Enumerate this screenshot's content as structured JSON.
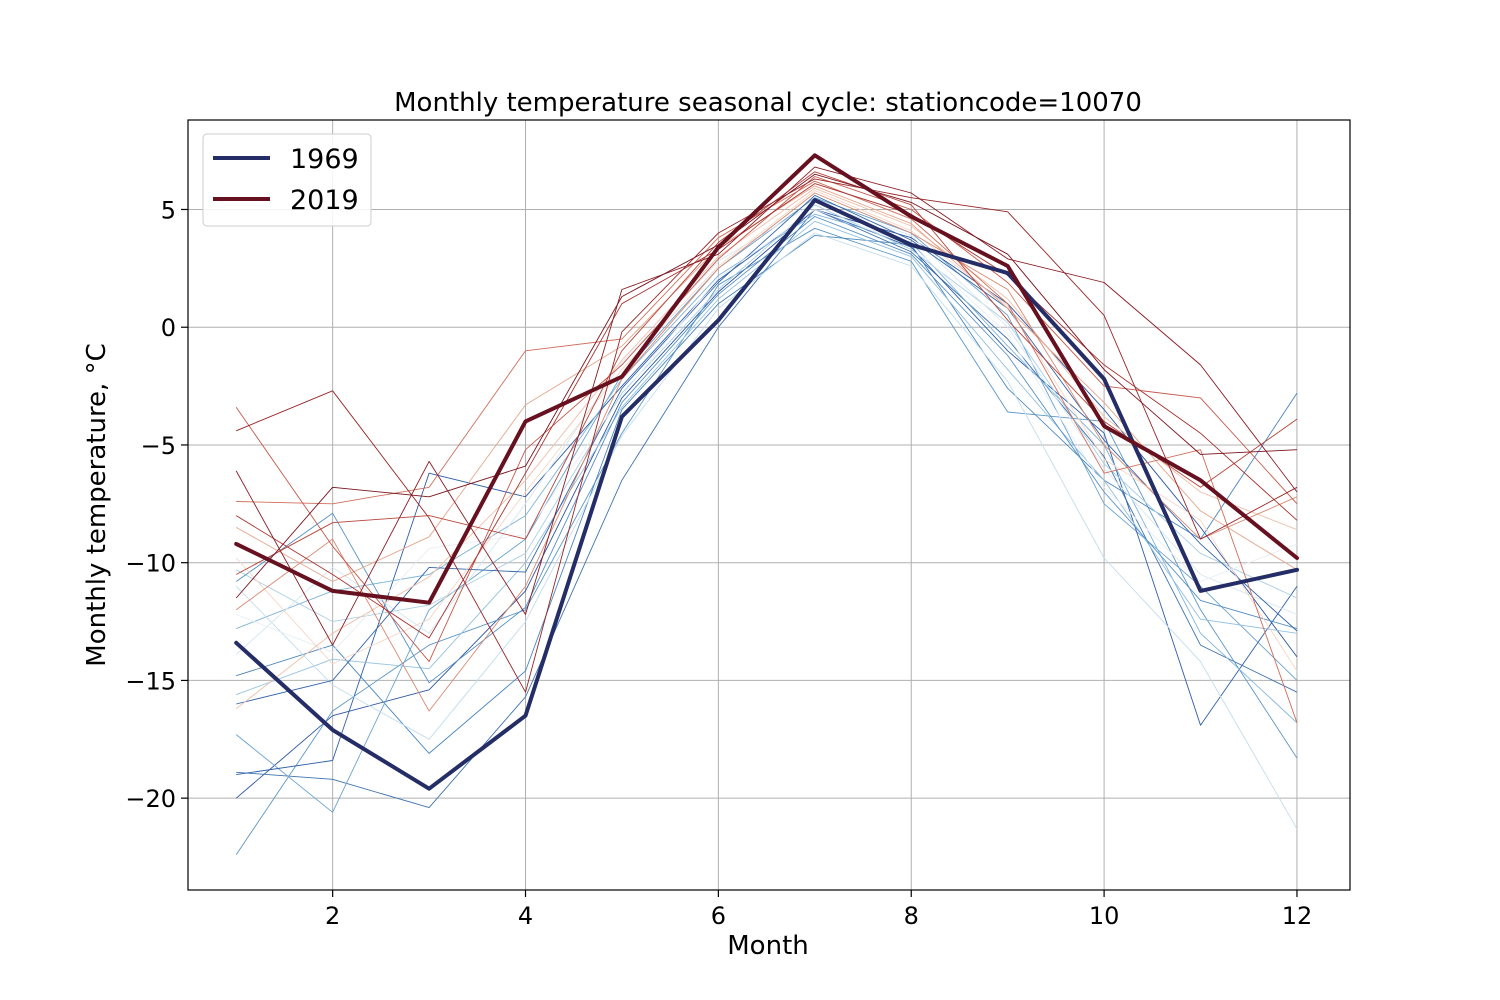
{
  "chart_data": {
    "type": "line",
    "title": "Monthly temperature seasonal cycle: stationcode=10070",
    "xlabel": "Month",
    "ylabel": "Monthly temperature, °C",
    "x": [
      1,
      2,
      3,
      4,
      5,
      6,
      7,
      8,
      9,
      10,
      11,
      12
    ],
    "xlim": [
      0.5,
      12.55
    ],
    "ylim": [
      -23.9,
      8.8
    ],
    "xticks": [
      2,
      4,
      6,
      8,
      10,
      12
    ],
    "yticks": [
      5,
      0,
      -5,
      -10,
      -15,
      -20
    ],
    "xtick_labels": [
      "2",
      "4",
      "6",
      "8",
      "10",
      "12"
    ],
    "ytick_labels": [
      "5",
      "0",
      "−5",
      "−10",
      "−15",
      "−20"
    ],
    "grid": true,
    "legend_position": "upper-left",
    "series": [
      {
        "name": "1969",
        "color": "#252d66",
        "values": [
          -13.4,
          -17.1,
          -19.6,
          -16.5,
          -3.8,
          0.3,
          5.4,
          3.5,
          2.3,
          -2.2,
          -11.2,
          -10.3
        ]
      },
      {
        "name": "2019",
        "color": "#67101f",
        "values": [
          -9.2,
          -11.2,
          -11.7,
          -4.0,
          -2.1,
          3.4,
          7.3,
          4.7,
          2.6,
          -4.2,
          -6.5,
          -9.8
        ]
      }
    ],
    "background_series": [
      {
        "color": "#2b55a0",
        "values": [
          -20.0,
          -16.5,
          -15.4,
          -11.2,
          -3.0,
          1.5,
          5.0,
          3.8,
          1.0,
          -3.5,
          -8.5,
          -14.0
        ]
      },
      {
        "color": "#3f74b0",
        "values": [
          -18.9,
          -19.2,
          -20.4,
          -15.7,
          -6.5,
          0.0,
          5.0,
          3.2,
          -0.5,
          -5.5,
          -13.5,
          -15.5
        ]
      },
      {
        "color": "#5b97c6",
        "values": [
          -22.4,
          -16.3,
          -13.5,
          -12.0,
          -4.5,
          1.8,
          4.2,
          2.8,
          -3.6,
          -4.0,
          -12.0,
          -18.3
        ]
      },
      {
        "color": "#4a86bd",
        "values": [
          -14.8,
          -13.5,
          -18.1,
          -14.6,
          -3.5,
          1.0,
          3.9,
          3.5,
          -2.6,
          -6.5,
          -9.0,
          -2.8
        ]
      },
      {
        "color": "#6aa3ce",
        "values": [
          -17.3,
          -20.6,
          -12.0,
          -9.0,
          -2.0,
          2.5,
          5.5,
          4.0,
          0.5,
          -7.5,
          -11.0,
          -15.0
        ]
      },
      {
        "color": "#2f5fa8",
        "values": [
          -19.0,
          -18.4,
          -6.2,
          -7.2,
          -2.5,
          2.0,
          5.0,
          3.4,
          -1.0,
          -4.5,
          -16.9,
          -11.0
        ]
      },
      {
        "color": "#80b4d8",
        "values": [
          -12.8,
          -11.2,
          -10.5,
          -8.0,
          -2.2,
          2.2,
          4.8,
          3.6,
          -0.8,
          -5.0,
          -13.0,
          -16.8
        ]
      },
      {
        "color": "#94c1df",
        "values": [
          -15.6,
          -14.1,
          -14.5,
          -10.0,
          -3.4,
          1.2,
          4.5,
          3.0,
          -1.8,
          -6.5,
          -12.4,
          -13.0
        ]
      },
      {
        "color": "#a9cfe5",
        "values": [
          -10.3,
          -12.5,
          -11.8,
          -9.6,
          -2.8,
          1.6,
          5.2,
          3.3,
          0.2,
          -5.8,
          -9.6,
          -11.5
        ]
      },
      {
        "color": "#c2dded",
        "values": [
          -11.0,
          -15.2,
          -17.5,
          -12.5,
          -4.6,
          0.8,
          4.0,
          2.6,
          -2.3,
          -9.8,
          -14.2,
          -21.3
        ]
      },
      {
        "color": "#d6e6f0",
        "values": [
          -13.9,
          -10.2,
          -13.0,
          -7.5,
          -1.5,
          2.8,
          5.3,
          3.9,
          0.0,
          -6.0,
          -10.5,
          -12.2
        ]
      },
      {
        "color": "#5590c4",
        "values": [
          -10.8,
          -7.9,
          -15.1,
          -11.9,
          -3.2,
          1.4,
          4.7,
          3.1,
          -1.2,
          -7.0,
          -11.6,
          -12.8
        ]
      },
      {
        "color": "#3566a9",
        "values": [
          -16.0,
          -15.0,
          -10.2,
          -10.4,
          -2.6,
          1.9,
          5.6,
          3.7,
          0.8,
          -4.8,
          -9.2,
          -12.9
        ]
      },
      {
        "color": "#e8eef4",
        "values": [
          -12.2,
          -13.8,
          -9.4,
          -8.8,
          -2.9,
          2.1,
          5.0,
          3.5,
          -0.3,
          -6.8,
          -10.8,
          -9.2
        ]
      },
      {
        "color": "#f4d7c8",
        "values": [
          -9.8,
          -14.3,
          -12.4,
          -7.0,
          -1.8,
          2.6,
          5.8,
          4.1,
          0.9,
          -5.6,
          -8.2,
          -14.6
        ]
      },
      {
        "color": "#eec0aa",
        "values": [
          -16.2,
          -13.0,
          -10.6,
          -6.5,
          -1.4,
          3.0,
          5.9,
          4.3,
          1.2,
          -3.8,
          -7.0,
          -8.6
        ]
      },
      {
        "color": "#e4a68c",
        "values": [
          -8.5,
          -10.8,
          -8.9,
          -3.3,
          -0.8,
          3.4,
          6.0,
          4.4,
          0.8,
          -3.2,
          -7.8,
          -10.3
        ]
      },
      {
        "color": "#d98a72",
        "values": [
          -12.0,
          -9.0,
          -16.3,
          -11.0,
          -2.2,
          2.5,
          5.7,
          4.0,
          1.6,
          -5.0,
          -9.0,
          -7.2
        ]
      },
      {
        "color": "#cf6f5c",
        "values": [
          -7.4,
          -7.5,
          -6.8,
          -1.0,
          -0.5,
          3.8,
          6.2,
          4.6,
          1.0,
          -6.2,
          -5.2,
          -16.8
        ]
      },
      {
        "color": "#c5584a",
        "values": [
          -3.4,
          -9.3,
          -14.2,
          -5.2,
          -1.6,
          2.9,
          6.4,
          5.0,
          1.9,
          -2.5,
          -3.0,
          -7.5
        ]
      },
      {
        "color": "#b8453b",
        "values": [
          -10.5,
          -8.3,
          -8.0,
          -9.0,
          -1.0,
          3.6,
          6.6,
          5.2,
          0.3,
          -4.0,
          -6.8,
          -3.9
        ]
      },
      {
        "color": "#a7332f",
        "values": [
          -8.0,
          -10.5,
          -13.2,
          -6.2,
          1.0,
          3.3,
          6.1,
          4.8,
          2.2,
          -1.6,
          -4.5,
          -8.2
        ]
      },
      {
        "color": "#982528",
        "values": [
          -4.4,
          -2.7,
          -8.1,
          -15.5,
          -0.2,
          4.0,
          6.3,
          5.5,
          4.9,
          0.5,
          -9.0,
          -6.8
        ]
      },
      {
        "color": "#8a1a23",
        "values": [
          -6.1,
          -13.5,
          -5.7,
          -12.2,
          1.6,
          3.1,
          6.8,
          5.7,
          2.9,
          1.9,
          -1.6,
          -7.0
        ]
      },
      {
        "color": "#7a1420",
        "values": [
          -11.5,
          -6.8,
          -7.2,
          -5.9,
          1.3,
          3.5,
          6.5,
          5.3,
          3.1,
          -1.8,
          -5.4,
          -5.2
        ]
      }
    ]
  }
}
